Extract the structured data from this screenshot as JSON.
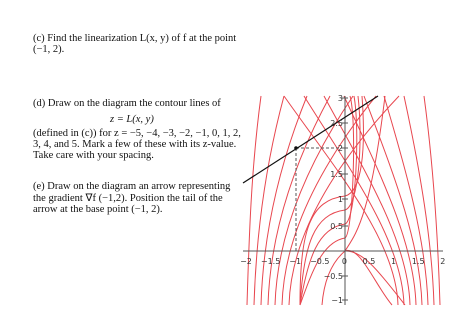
{
  "problem": {
    "part_c": [
      "(c) Find the linearization L(x, y) of f at the point",
      "(−1, 2)."
    ],
    "part_d": [
      "(d) Draw on the diagram the contour lines of",
      "z = L(x, y)",
      "(defined in (c)) for  z = −5, −4, −3, −2, −1, 0, 1, 2,",
      "3, 4, and 5. Mark a few of these with its z-value.",
      "Take care with your spacing."
    ],
    "part_e": [
      "(e) Draw on the diagram an arrow representing",
      "the gradient ∇f (−1,2). Position the tail of the",
      "arrow at the base point (−1, 2)."
    ]
  },
  "figure": {
    "x_tick_labels": [
      "−2",
      "−1.5",
      "−1",
      "−0.5",
      "0",
      "0.5",
      "1",
      "1.5",
      "2"
    ],
    "y_tick_labels": [
      "3",
      "2.5",
      "2",
      "1.5",
      "1",
      "0.5",
      "−0.5",
      "−1"
    ]
  }
}
